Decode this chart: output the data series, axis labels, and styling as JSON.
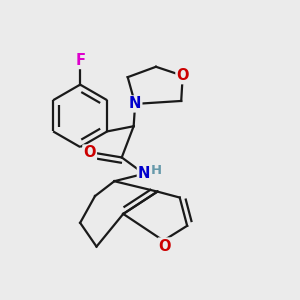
{
  "bg_color": "#ebebeb",
  "bond_color": "#1a1a1a",
  "bond_width": 1.6,
  "dbo": 0.018,
  "atom_colors": {
    "F": "#dd00cc",
    "O": "#cc0000",
    "N": "#0000cc",
    "H": "#6699aa",
    "C": "#1a1a1a"
  },
  "afs": 10.5,
  "hfs": 9.5
}
